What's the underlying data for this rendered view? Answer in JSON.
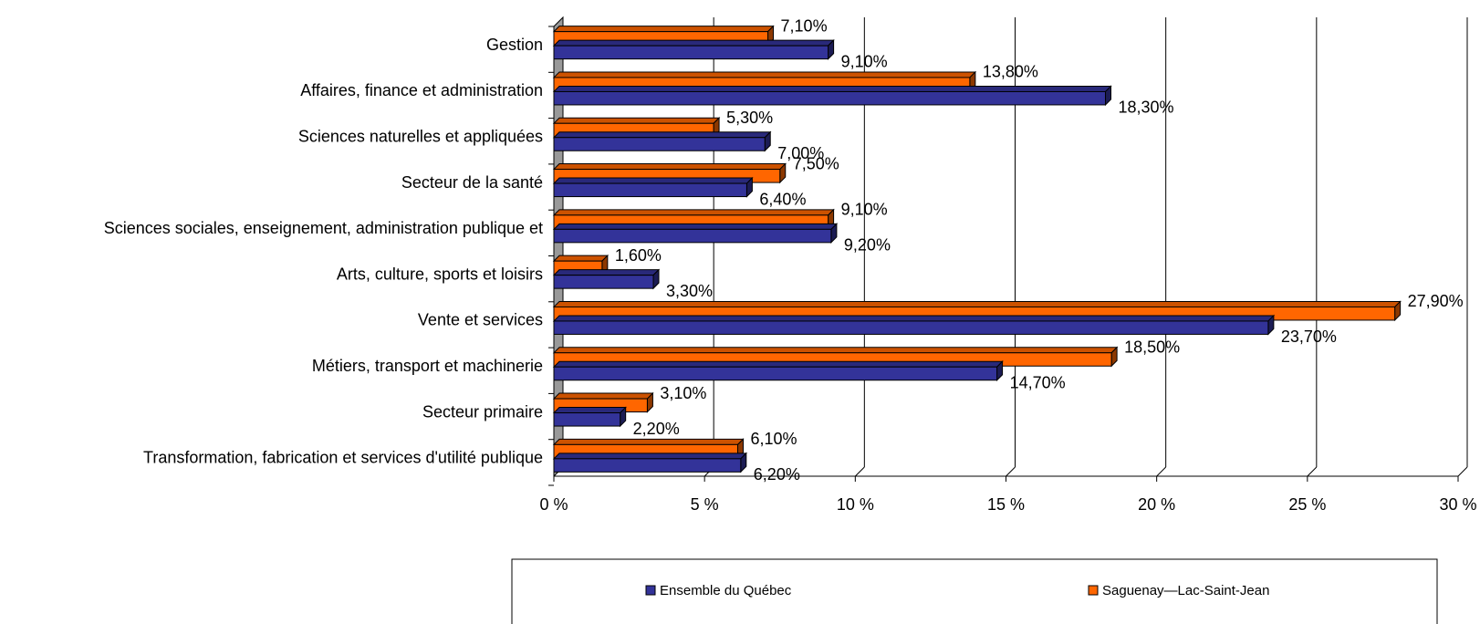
{
  "chart_data": {
    "type": "bar",
    "orientation": "horizontal",
    "categories": [
      "Gestion",
      "Affaires, finance et administration",
      "Sciences naturelles et appliquées",
      "Secteur de la santé",
      "Sciences sociales, enseignement, administration publique et",
      "Arts, culture, sports et loisirs",
      "Vente et services",
      "Métiers, transport et machinerie",
      "Secteur primaire",
      "Transformation, fabrication et services d'utilité publique"
    ],
    "series": [
      {
        "name": "Saguenay—Lac-Saint-Jean",
        "color": "#ff6600",
        "values": [
          7.1,
          13.8,
          5.3,
          7.5,
          9.1,
          1.6,
          27.9,
          18.5,
          3.1,
          6.1
        ],
        "value_labels": [
          "7,10%",
          "13,80%",
          "5,30%",
          "7,50%",
          "9,10%",
          "1,60%",
          "27,90%",
          "18,50%",
          "3,10%",
          "6,10%"
        ]
      },
      {
        "name": "Ensemble du Québec",
        "color": "#333399",
        "values": [
          9.1,
          18.3,
          7.0,
          6.4,
          9.2,
          3.3,
          23.7,
          14.7,
          2.2,
          6.2
        ],
        "value_labels": [
          "9,10%",
          "18,30%",
          "7,00%",
          "6,40%",
          "9,20%",
          "3,30%",
          "23,70%",
          "14,70%",
          "2,20%",
          "6,20%"
        ]
      }
    ],
    "xlim": [
      0,
      30
    ],
    "xticks": [
      {
        "value": 0,
        "label": "0 %"
      },
      {
        "value": 5,
        "label": "5 %"
      },
      {
        "value": 10,
        "label": "10 %"
      },
      {
        "value": 15,
        "label": "15 %"
      },
      {
        "value": 20,
        "label": "20 %"
      },
      {
        "value": 25,
        "label": "25 %"
      },
      {
        "value": 30,
        "label": "30 %"
      }
    ],
    "grid": true,
    "legend": "bottom"
  }
}
